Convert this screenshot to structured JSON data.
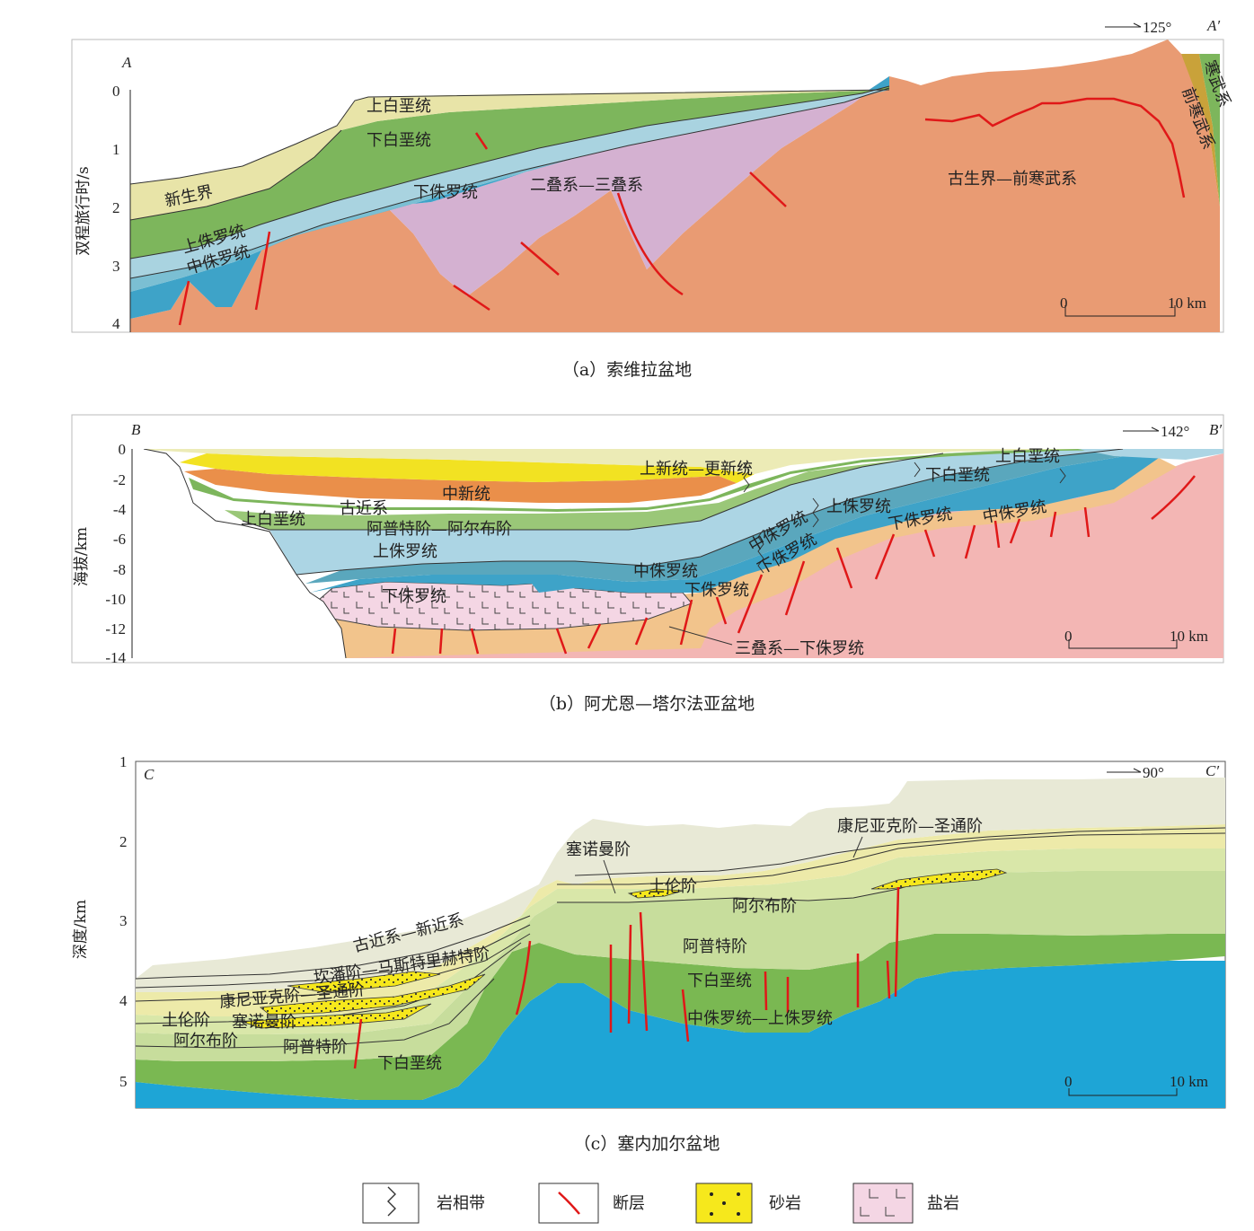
{
  "panel_a": {
    "label_left": "A",
    "label_right": "A′",
    "direction": "125°",
    "y_title": "双程旅行时/s",
    "y_ticks": [
      "0",
      "1",
      "2",
      "3",
      "4"
    ],
    "scale_start": "0",
    "scale_end": "10 km",
    "caption": "（a）索维拉盆地",
    "units": {
      "cenozoic": "新生界",
      "upper_cretaceous": "上白垩统",
      "lower_cretaceous": "下白垩统",
      "upper_jurassic": "上侏罗统",
      "middle_jurassic": "中侏罗统",
      "lower_jurassic": "下侏罗统",
      "permian_triassic": "二叠系—三叠系",
      "paleozoic_precambrian": "古生界—前寒武系",
      "cambrian": "寒武系",
      "precambrian": "前寒武系"
    },
    "colors": {
      "cenozoic": "#e8e4a8",
      "cretaceous": "#7db65c",
      "upper_jurassic": "#a9d3e0",
      "lower_jurassic": "#3ea3c8",
      "permotriassic": "#d4b1d1",
      "basement": "#e99b73"
    }
  },
  "panel_b": {
    "label_left": "B",
    "label_right": "B′",
    "direction": "142°",
    "y_title": "海拔/km",
    "y_ticks": [
      "0",
      "-2",
      "-4",
      "-6",
      "-8",
      "-10",
      "-12",
      "-14"
    ],
    "scale_start": "0",
    "scale_end": "10 km",
    "caption": "（b）阿尤恩—塔尔法亚盆地",
    "units": {
      "pliocene_pleistocene": "上新统—更新统",
      "miocene": "中新统",
      "paleogene": "古近系",
      "upper_cretaceous_left": "上白垩统",
      "upper_cretaceous_right": "上白垩统",
      "aptian_albian": "阿普特阶—阿尔布阶",
      "lower_cretaceous": "下白垩统",
      "upper_jurassic_left": "上侏罗统",
      "upper_jurassic_right": "上侏罗统",
      "middle_jurassic_left": "中侏罗统",
      "middle_jurassic_mid": "中侏罗统",
      "middle_jurassic_right": "中侏罗统",
      "lower_jurassic_left": "下侏罗统",
      "lower_jurassic_mid": "下侏罗统",
      "lower_jurassic_right": "下侏罗统",
      "lower_jurassic_shelf": "下侏罗统",
      "triassic_lower_jurassic": "三叠系—下侏罗统"
    }
  },
  "panel_c": {
    "label_left": "C",
    "label_right": "C′",
    "direction": "90°",
    "y_title": "深度/km",
    "y_ticks": [
      "1",
      "2",
      "3",
      "4",
      "5"
    ],
    "scale_start": "0",
    "scale_end": "10 km",
    "caption": "（c）塞内加尔盆地",
    "units": {
      "paleogene_neogene": "古近系—新近系",
      "campanian_maastrichtian": "坎潘阶—马斯特里赫特阶",
      "coniacian_santonian_left": "康尼亚克阶—圣通阶",
      "coniacian_santonian_right": "康尼亚克阶—圣通阶",
      "cenomanian_left": "塞诺曼阶",
      "cenomanian_right": "塞诺曼阶",
      "turonian_left": "土伦阶",
      "turonian_right": "土伦阶",
      "albian_left": "阿尔布阶",
      "albian_right": "阿尔布阶",
      "aptian_left": "阿普特阶",
      "aptian_right": "阿普特阶",
      "lower_cretaceous_left": "下白垩统",
      "lower_cretaceous_right": "下白垩统",
      "middle_upper_jurassic": "中侏罗统—上侏罗统"
    }
  },
  "legend": {
    "facies": "岩相带",
    "fault": "断层",
    "sandstone": "砂岩",
    "salt": "盐岩"
  }
}
